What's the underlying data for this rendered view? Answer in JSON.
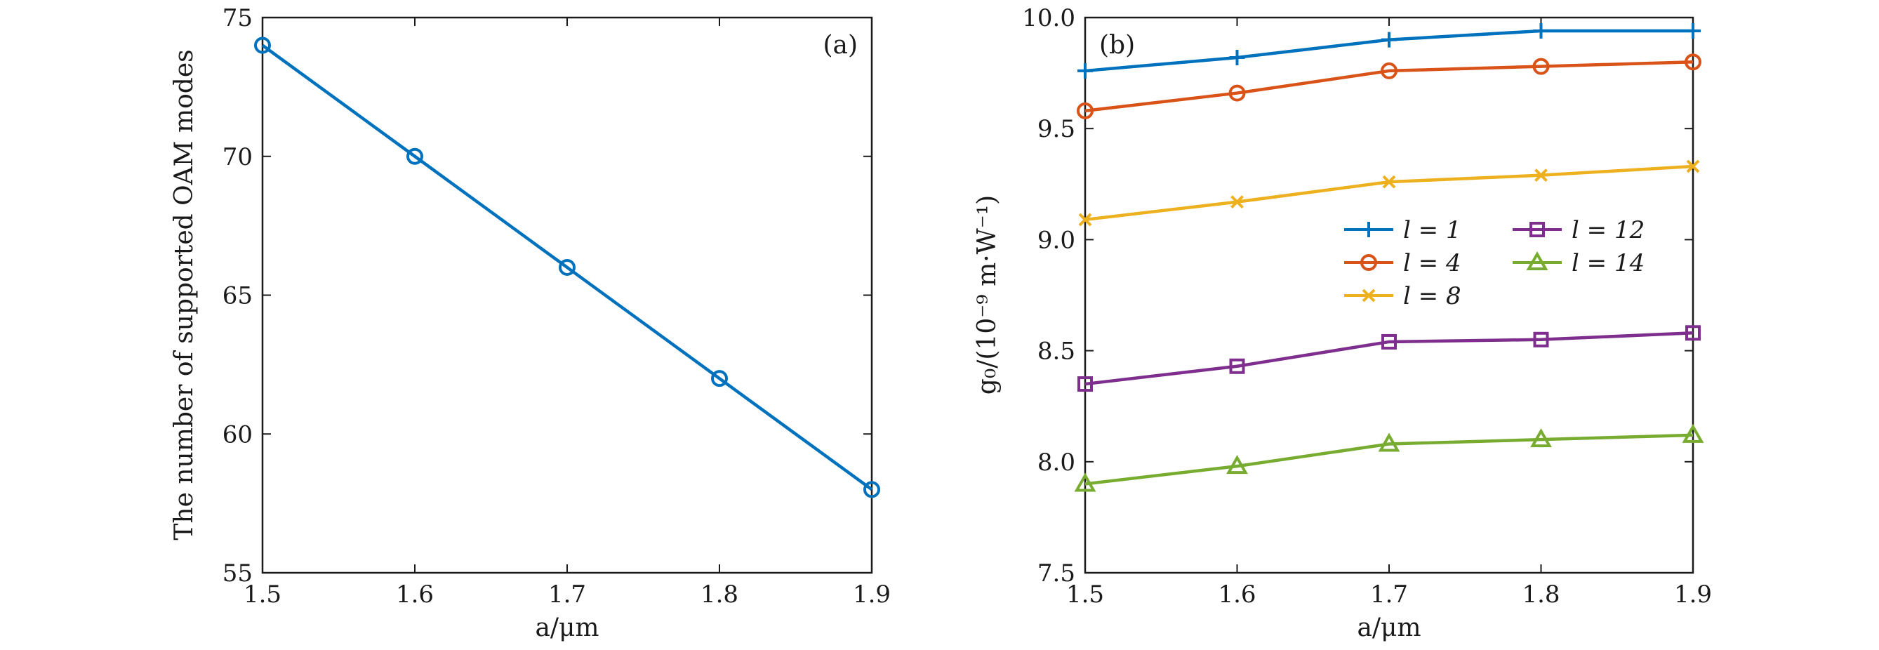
{
  "chart_data": [
    {
      "panel": "(a)",
      "type": "line",
      "xlabel": "a/μm",
      "ylabel": "The number of supported OAM modes",
      "xlim": [
        1.5,
        1.9
      ],
      "ylim": [
        55,
        75
      ],
      "xticks": [
        "1.5",
        "1.6",
        "1.7",
        "1.8",
        "1.9"
      ],
      "yticks": [
        "55",
        "60",
        "65",
        "70",
        "75"
      ],
      "x": [
        1.5,
        1.6,
        1.7,
        1.8,
        1.9
      ],
      "series": [
        {
          "name": "OAM modes",
          "values": [
            74,
            70,
            66,
            62,
            58
          ],
          "color": "#0072bd",
          "marker": "circle"
        }
      ]
    },
    {
      "panel": "(b)",
      "type": "line",
      "xlabel": "a/μm",
      "ylabel": "g₀/(10⁻⁹ m·W⁻¹)",
      "xlim": [
        1.5,
        1.9
      ],
      "ylim": [
        7.5,
        10.0
      ],
      "xticks": [
        "1.5",
        "1.6",
        "1.7",
        "1.8",
        "1.9"
      ],
      "yticks": [
        "7.5",
        "8.0",
        "8.5",
        "9.0",
        "9.5",
        "10.0"
      ],
      "x": [
        1.5,
        1.6,
        1.7,
        1.8,
        1.9
      ],
      "legend_position": "center-right",
      "series": [
        {
          "name": "l = 1",
          "values": [
            9.76,
            9.82,
            9.9,
            9.94,
            9.94
          ],
          "color": "#0072bd",
          "marker": "plus"
        },
        {
          "name": "l = 4",
          "values": [
            9.58,
            9.66,
            9.76,
            9.78,
            9.8
          ],
          "color": "#d95319",
          "marker": "circle"
        },
        {
          "name": "l = 8",
          "values": [
            9.09,
            9.17,
            9.26,
            9.29,
            9.33
          ],
          "color": "#edb120",
          "marker": "x"
        },
        {
          "name": "l = 12",
          "values": [
            8.35,
            8.43,
            8.54,
            8.55,
            8.58
          ],
          "color": "#7e2f8e",
          "marker": "square"
        },
        {
          "name": "l = 14",
          "values": [
            7.9,
            7.98,
            8.08,
            8.1,
            8.12
          ],
          "color": "#77ac30",
          "marker": "triangle"
        }
      ]
    }
  ]
}
